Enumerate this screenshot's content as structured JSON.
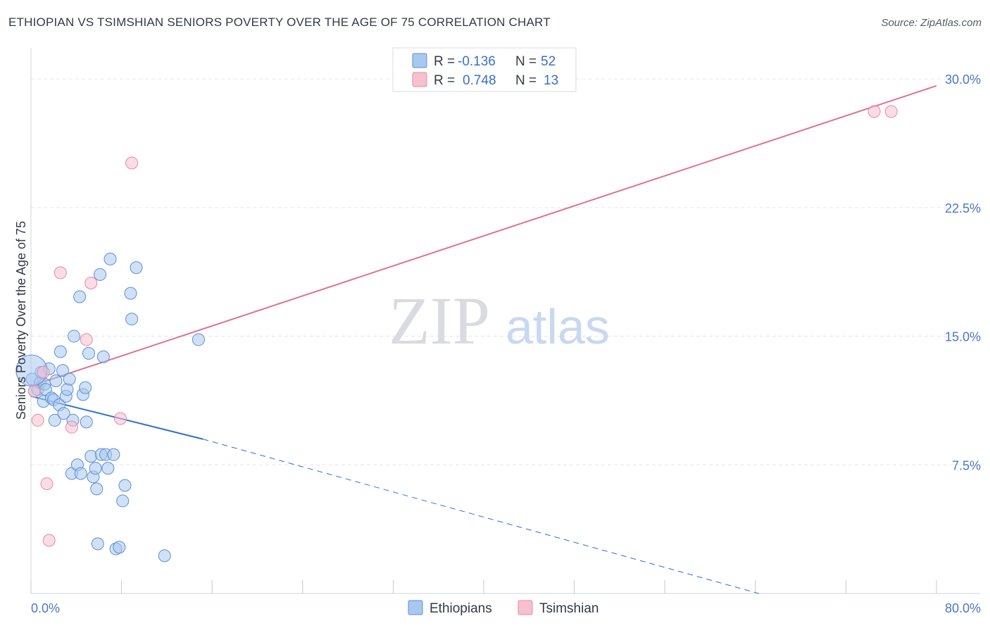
{
  "title": "ETHIOPIAN VS TSIMSHIAN SENIORS POVERTY OVER THE AGE OF 75 CORRELATION CHART",
  "source": "Source: ZipAtlas.com",
  "watermark": {
    "part1": "ZIP",
    "part2": "atlas"
  },
  "colors": {
    "ethiopians_fill": "#a9c8ef",
    "ethiopians_stroke": "#5b8fd6",
    "ethiopians_line": "#2f6fd1",
    "tsimshian_fill": "#f6c0cf",
    "tsimshian_stroke": "#e48aa6",
    "tsimshian_line": "#e0709a",
    "grid": "#e3e6ea",
    "tick_label": "#4a78c2"
  },
  "legend": {
    "rows": [
      {
        "r_label": "R = ",
        "r_value": "-0.136",
        "n_label": "N = ",
        "n_value": "52"
      },
      {
        "r_label": "R = ",
        "r_value": "0.748",
        "n_label": "N = ",
        "n_value": "13"
      }
    ]
  },
  "chart_data": {
    "type": "scatter",
    "title": "ETHIOPIAN VS TSIMSHIAN SENIORS POVERTY OVER THE AGE OF 75 CORRELATION CHART",
    "xlabel": "",
    "ylabel": "Seniors Poverty Over the Age of 75",
    "xlim": [
      0,
      80
    ],
    "ylim": [
      0,
      31.4
    ],
    "x_tick_labels": [
      "0.0%",
      "80.0%"
    ],
    "y_ticks": [
      7.5,
      15.0,
      22.5,
      30.0
    ],
    "y_tick_labels": [
      "7.5%",
      "15.0%",
      "22.5%",
      "30.0%"
    ],
    "x_minor_ticks": [
      0,
      8,
      16,
      24,
      32,
      40,
      48,
      56,
      64,
      72,
      80
    ],
    "series": [
      {
        "name": "Ethiopians",
        "points": [
          [
            0.1,
            12.5
          ],
          [
            0.3,
            11.8
          ],
          [
            0.6,
            11.9
          ],
          [
            0.8,
            12.3
          ],
          [
            0.9,
            12.9
          ],
          [
            1.1,
            11.2
          ],
          [
            1.2,
            12.2
          ],
          [
            1.3,
            11.9
          ],
          [
            1.6,
            13.1
          ],
          [
            1.8,
            11.4
          ],
          [
            2.0,
            11.3
          ],
          [
            2.1,
            10.1
          ],
          [
            2.2,
            12.4
          ],
          [
            2.5,
            11.0
          ],
          [
            2.6,
            14.1
          ],
          [
            2.8,
            13.0
          ],
          [
            2.9,
            10.5
          ],
          [
            3.1,
            11.5
          ],
          [
            3.2,
            11.9
          ],
          [
            3.4,
            12.5
          ],
          [
            3.6,
            7.0
          ],
          [
            3.7,
            10.1
          ],
          [
            3.8,
            15.0
          ],
          [
            4.1,
            7.5
          ],
          [
            4.3,
            17.3
          ],
          [
            4.4,
            7.0
          ],
          [
            4.6,
            11.6
          ],
          [
            4.8,
            12.0
          ],
          [
            4.9,
            10.0
          ],
          [
            5.1,
            14.0
          ],
          [
            5.3,
            8.0
          ],
          [
            5.5,
            6.8
          ],
          [
            5.7,
            7.3
          ],
          [
            5.8,
            6.1
          ],
          [
            5.9,
            2.9
          ],
          [
            6.1,
            18.6
          ],
          [
            6.2,
            8.1
          ],
          [
            6.4,
            13.8
          ],
          [
            6.6,
            8.1
          ],
          [
            6.8,
            7.3
          ],
          [
            7.0,
            19.5
          ],
          [
            7.3,
            8.1
          ],
          [
            7.5,
            2.6
          ],
          [
            7.8,
            2.7
          ],
          [
            8.1,
            5.4
          ],
          [
            8.3,
            6.3
          ],
          [
            8.8,
            17.5
          ],
          [
            8.9,
            16.0
          ],
          [
            9.3,
            19.0
          ],
          [
            11.8,
            2.2
          ],
          [
            14.8,
            14.8
          ],
          [
            0.05,
            13.0
          ]
        ]
      },
      {
        "name": "Tsimshian",
        "points": [
          [
            0.3,
            11.8
          ],
          [
            0.6,
            10.1
          ],
          [
            1.1,
            12.9
          ],
          [
            1.4,
            6.4
          ],
          [
            1.6,
            3.1
          ],
          [
            2.6,
            18.7
          ],
          [
            3.6,
            9.7
          ],
          [
            4.9,
            14.8
          ],
          [
            5.3,
            18.1
          ],
          [
            7.9,
            10.2
          ],
          [
            8.9,
            25.1
          ],
          [
            74.5,
            28.1
          ],
          [
            76.0,
            28.1
          ]
        ]
      }
    ],
    "trend_lines": [
      {
        "series": "Ethiopians",
        "x0": 0,
        "y0": 11.5,
        "x1": 15.2,
        "y1": 9.0,
        "dashed_to_x": 64.3,
        "dashed_to_y": 0
      },
      {
        "series": "Tsimshian",
        "x0": 0,
        "y0": 12.1,
        "x1": 80,
        "y1": 29.6
      }
    ]
  }
}
